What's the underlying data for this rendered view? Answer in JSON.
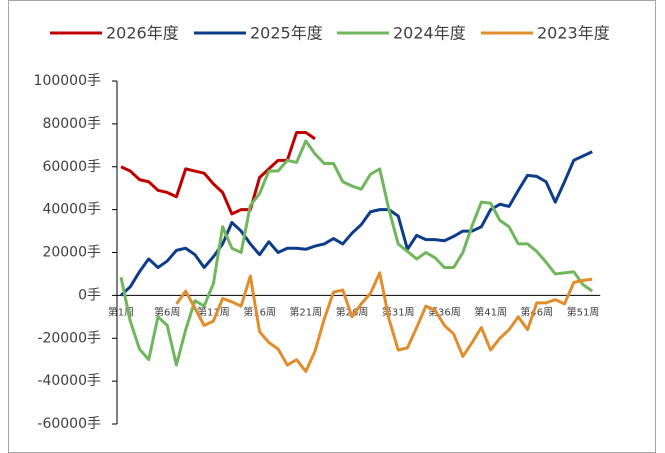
{
  "chart_data": {
    "type": "line",
    "categories": [
      "第1周",
      null,
      null,
      null,
      null,
      "第6周",
      null,
      null,
      null,
      null,
      "第11周",
      null,
      null,
      null,
      null,
      "第16周",
      null,
      null,
      null,
      null,
      "第21周",
      null,
      null,
      null,
      null,
      "第26周",
      null,
      null,
      null,
      null,
      "第31周",
      null,
      null,
      null,
      null,
      "第36周",
      null,
      null,
      null,
      null,
      "第41周",
      null,
      null,
      null,
      null,
      "第46周",
      null,
      null,
      null,
      null,
      "第51周",
      null
    ],
    "ylim": [
      -60000,
      100000
    ],
    "yticks": [
      {
        "value": -60000,
        "label": "-60000手"
      },
      {
        "value": -40000,
        "label": "-40000手"
      },
      {
        "value": -20000,
        "label": "-20000手"
      },
      {
        "value": 0,
        "label": "0手"
      },
      {
        "value": 20000,
        "label": "20000手"
      },
      {
        "value": 40000,
        "label": "40000手"
      },
      {
        "value": 60000,
        "label": "60000手"
      },
      {
        "value": 80000,
        "label": "80000手"
      },
      {
        "value": 100000,
        "label": "100000手"
      }
    ],
    "series": [
      {
        "name": "2026年度",
        "color": "#c00000",
        "values": [
          60000,
          58000,
          54000,
          53000,
          49000,
          48000,
          46000,
          59000,
          58000,
          57000,
          52000,
          48000,
          38000,
          40000,
          40000,
          55000,
          59000,
          63000,
          63000,
          76000,
          76000,
          73000,
          null,
          null,
          null,
          null,
          null,
          null,
          null,
          null,
          null,
          null,
          null,
          null,
          null,
          null,
          null,
          null,
          null,
          null,
          null,
          null,
          null,
          null,
          null,
          null,
          null,
          null,
          null,
          null,
          null,
          null
        ]
      },
      {
        "name": "2025年度",
        "color": "#0d3c8a",
        "values": [
          0,
          4000,
          11000,
          17000,
          13000,
          16000,
          21000,
          22000,
          19000,
          13000,
          18000,
          24000,
          34000,
          30000,
          24000,
          19000,
          25000,
          20000,
          22000,
          22000,
          21500,
          23000,
          24000,
          26500,
          24000,
          29000,
          33000,
          39000,
          40000,
          40000,
          37000,
          21500,
          28000,
          26000,
          26000,
          25500,
          27500,
          30000,
          30000,
          32000,
          40000,
          42500,
          41500,
          49000,
          56000,
          55500,
          53000,
          43500,
          53000,
          63000,
          65000,
          67000
        ]
      },
      {
        "name": "2024年度",
        "color": "#70b65c",
        "values": [
          8500,
          -12000,
          -25000,
          -30000,
          -10000,
          -14000,
          -32500,
          -16000,
          -2500,
          -5000,
          5500,
          32000,
          22000,
          20000,
          42000,
          47500,
          58000,
          58000,
          63000,
          62000,
          72000,
          66000,
          61500,
          61500,
          53000,
          51000,
          49500,
          56500,
          59000,
          40000,
          24000,
          20500,
          17000,
          20000,
          17500,
          13000,
          13000,
          20000,
          32500,
          43500,
          43000,
          35000,
          32000,
          24000,
          24000,
          20500,
          15500,
          10000,
          10500,
          11000,
          5000,
          2000
        ]
      },
      {
        "name": "2023年度",
        "color": "#e08e2c",
        "values": [
          null,
          null,
          null,
          null,
          null,
          null,
          -4000,
          2000,
          -6000,
          -14000,
          -12000,
          -1500,
          -3000,
          -5000,
          9000,
          -17000,
          -22000,
          -25000,
          -32500,
          -30000,
          -35500,
          -26000,
          -11000,
          1500,
          2500,
          -10000,
          -4000,
          1000,
          10500,
          -11000,
          -25500,
          -24500,
          -15000,
          -5000,
          -7000,
          -14000,
          -18000,
          -28500,
          -22000,
          -15000,
          -25500,
          -20000,
          -16000,
          -10000,
          -16000,
          -3500,
          -3500,
          -2000,
          -4000,
          6000,
          7000,
          7500
        ]
      }
    ]
  }
}
